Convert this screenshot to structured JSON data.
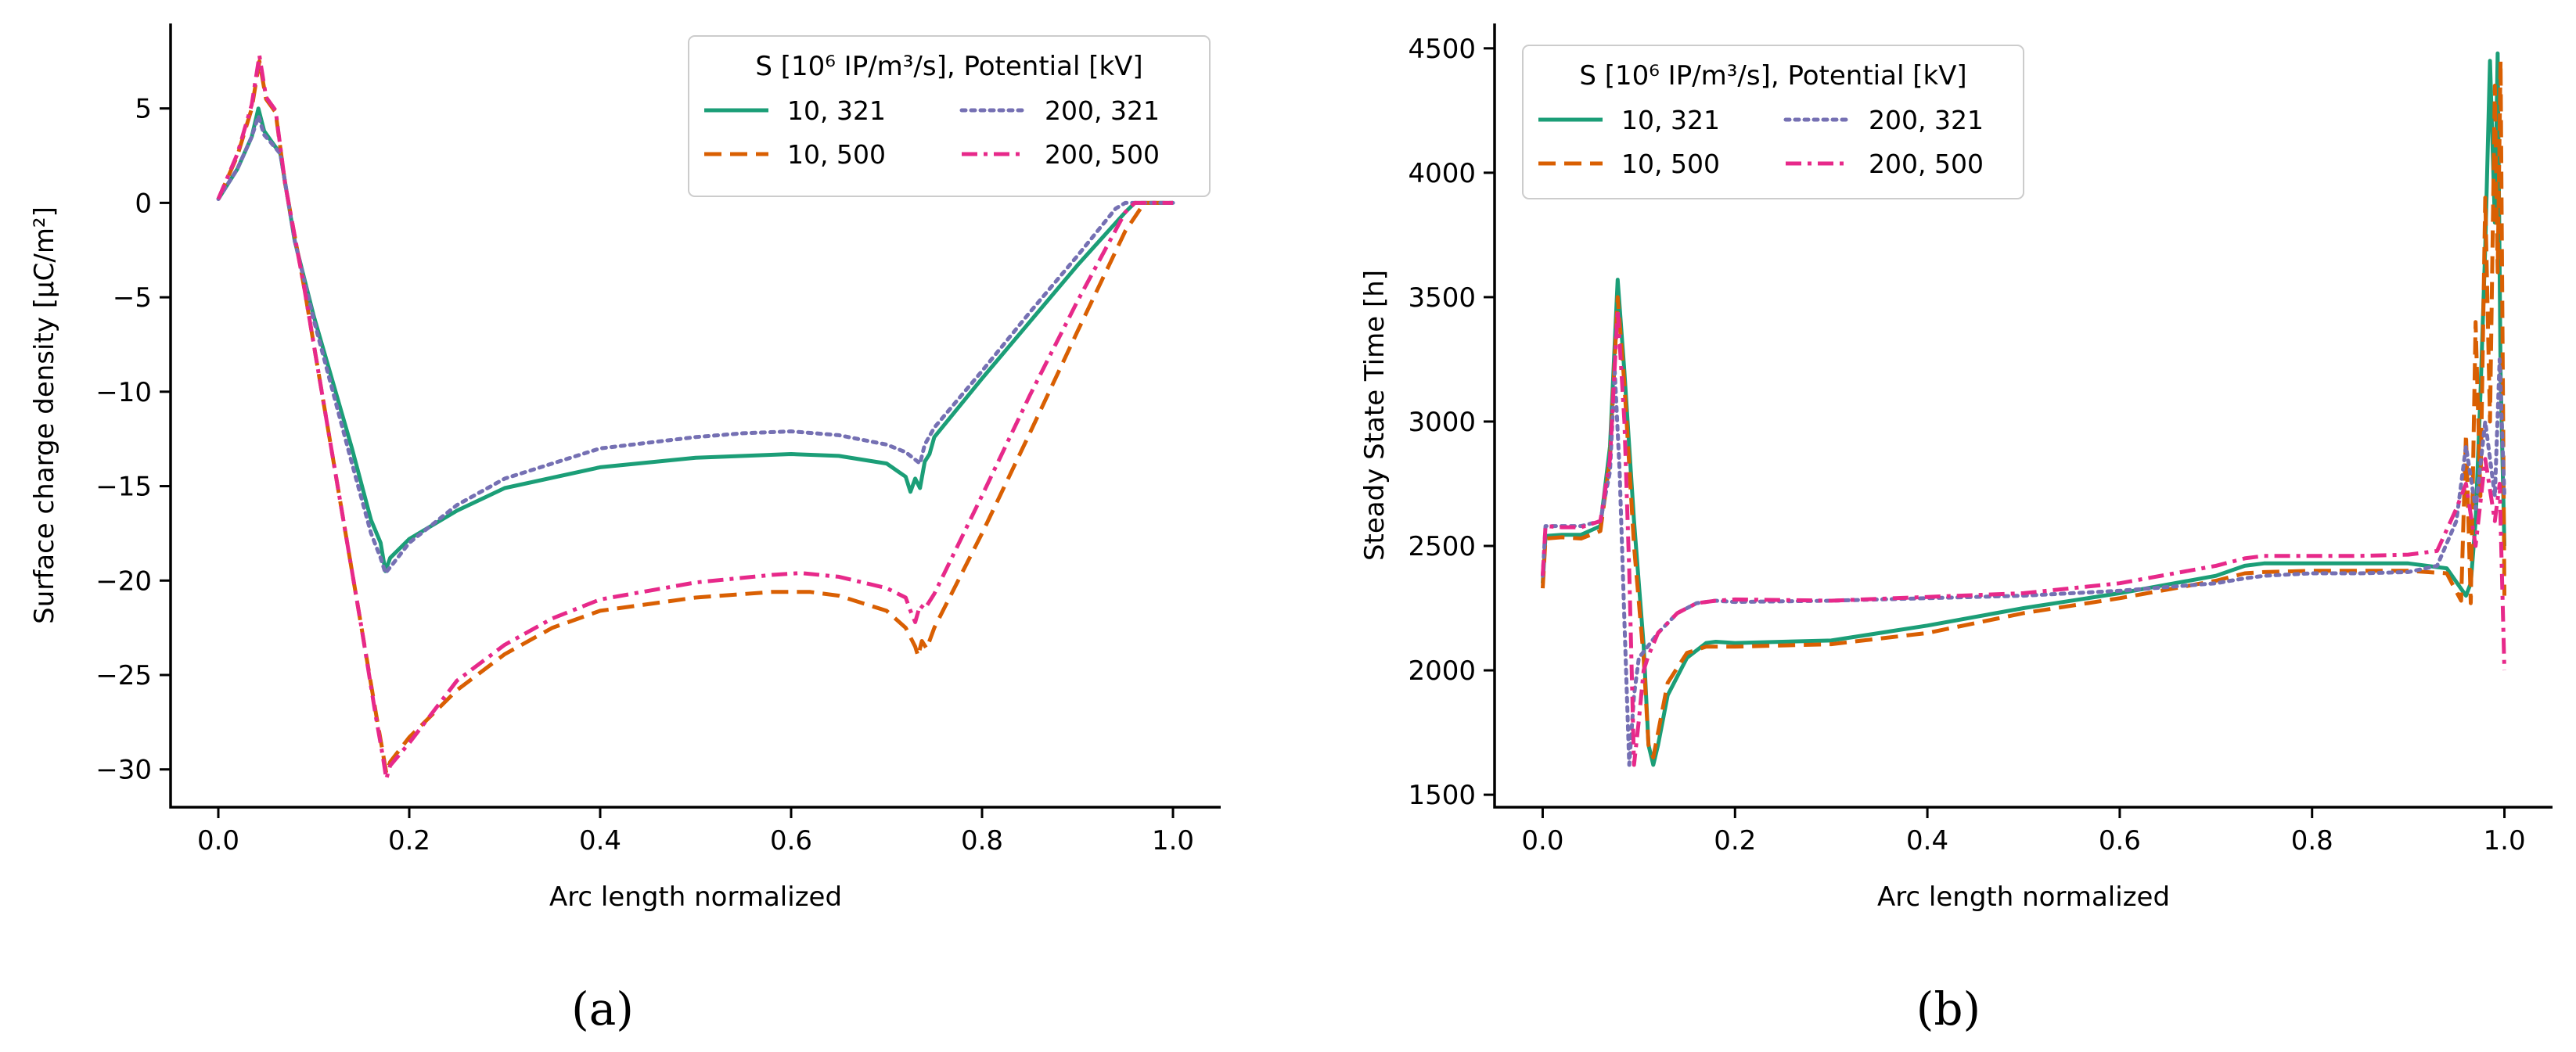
{
  "chart_data": [
    {
      "panel_label": "(a)",
      "type": "line",
      "title": "",
      "xlabel": "Arc length normalized",
      "ylabel": "Surface charge density [μC/m²]",
      "xlim": [
        -0.05,
        1.05
      ],
      "ylim": [
        -32,
        9.5
      ],
      "xticks": [
        0.0,
        0.2,
        0.4,
        0.6,
        0.8,
        1.0
      ],
      "xtick_labels": [
        "0.0",
        "0.2",
        "0.4",
        "0.6",
        "0.8",
        "1.0"
      ],
      "yticks": [
        5,
        0,
        -5,
        -10,
        -15,
        -20,
        -25,
        -30
      ],
      "ytick_labels": [
        "5",
        "0",
        "−5",
        "−10",
        "−15",
        "−20",
        "−25",
        "−30"
      ],
      "grid": false,
      "legend": {
        "title": "S [10⁶ IP/m³/s], Potential [kV]",
        "placement": "top-right",
        "columns": 2
      },
      "series": [
        {
          "name": "10, 321",
          "color": "#1b9e77",
          "dash": "solid",
          "x": [
            0.0,
            0.02,
            0.035,
            0.042,
            0.048,
            0.055,
            0.065,
            0.08,
            0.1,
            0.12,
            0.14,
            0.16,
            0.17,
            0.175,
            0.18,
            0.2,
            0.25,
            0.3,
            0.4,
            0.5,
            0.6,
            0.65,
            0.7,
            0.72,
            0.725,
            0.73,
            0.735,
            0.74,
            0.745,
            0.75,
            0.8,
            0.85,
            0.9,
            0.95,
            0.96,
            1.0
          ],
          "y": [
            0.2,
            1.8,
            3.5,
            5.0,
            3.8,
            3.3,
            2.6,
            -2.0,
            -6.0,
            -9.5,
            -13.0,
            -16.8,
            -18.0,
            -19.5,
            -18.8,
            -17.8,
            -16.3,
            -15.1,
            -14.0,
            -13.5,
            -13.3,
            -13.4,
            -13.8,
            -14.5,
            -15.3,
            -14.6,
            -15.1,
            -13.7,
            -13.3,
            -12.4,
            -9.3,
            -6.3,
            -3.3,
            -0.5,
            0.0,
            0.0
          ]
        },
        {
          "name": "10, 500",
          "color": "#d95f02",
          "dash": "dashed",
          "x": [
            0.0,
            0.02,
            0.035,
            0.043,
            0.05,
            0.06,
            0.07,
            0.09,
            0.11,
            0.13,
            0.15,
            0.165,
            0.172,
            0.176,
            0.18,
            0.2,
            0.25,
            0.3,
            0.35,
            0.4,
            0.5,
            0.58,
            0.62,
            0.65,
            0.7,
            0.72,
            0.73,
            0.733,
            0.737,
            0.742,
            0.75,
            0.8,
            0.85,
            0.9,
            0.95,
            0.97,
            1.0
          ],
          "y": [
            0.2,
            2.5,
            5.0,
            7.5,
            5.5,
            4.8,
            1.0,
            -4.5,
            -10.5,
            -16.5,
            -22.5,
            -27.0,
            -29.0,
            -30.2,
            -29.6,
            -28.3,
            -25.8,
            -23.9,
            -22.5,
            -21.6,
            -20.9,
            -20.6,
            -20.6,
            -20.8,
            -21.6,
            -22.5,
            -23.5,
            -24.0,
            -23.2,
            -23.6,
            -22.5,
            -17.5,
            -12.2,
            -6.8,
            -1.5,
            0.0,
            0.0
          ]
        },
        {
          "name": "200, 321",
          "color": "#7570b3",
          "dash": "dotted",
          "x": [
            0.0,
            0.02,
            0.035,
            0.042,
            0.048,
            0.055,
            0.065,
            0.08,
            0.1,
            0.12,
            0.14,
            0.16,
            0.17,
            0.175,
            0.18,
            0.2,
            0.25,
            0.3,
            0.4,
            0.5,
            0.55,
            0.6,
            0.65,
            0.7,
            0.72,
            0.73,
            0.735,
            0.74,
            0.75,
            0.8,
            0.85,
            0.9,
            0.94,
            0.95,
            1.0
          ],
          "y": [
            0.2,
            1.8,
            3.5,
            4.6,
            3.6,
            3.2,
            2.6,
            -2.0,
            -6.2,
            -10.0,
            -13.8,
            -17.5,
            -18.8,
            -19.6,
            -19.3,
            -18.0,
            -16.0,
            -14.6,
            -13.0,
            -12.4,
            -12.2,
            -12.1,
            -12.3,
            -12.8,
            -13.2,
            -13.6,
            -13.8,
            -12.8,
            -11.9,
            -8.9,
            -5.8,
            -2.8,
            -0.3,
            0.0,
            0.0
          ]
        },
        {
          "name": "200, 500",
          "color": "#e7298a",
          "dash": "dashdot",
          "x": [
            0.0,
            0.02,
            0.035,
            0.043,
            0.05,
            0.06,
            0.07,
            0.09,
            0.11,
            0.13,
            0.15,
            0.165,
            0.172,
            0.176,
            0.18,
            0.2,
            0.25,
            0.3,
            0.35,
            0.4,
            0.5,
            0.58,
            0.61,
            0.65,
            0.7,
            0.72,
            0.725,
            0.73,
            0.735,
            0.74,
            0.75,
            0.8,
            0.85,
            0.9,
            0.95,
            0.96,
            1.0
          ],
          "y": [
            0.2,
            2.6,
            5.2,
            7.8,
            5.6,
            4.9,
            1.0,
            -4.5,
            -10.5,
            -16.5,
            -22.5,
            -27.2,
            -29.2,
            -30.5,
            -29.8,
            -28.6,
            -25.3,
            -23.4,
            -22.0,
            -21.0,
            -20.1,
            -19.7,
            -19.6,
            -19.8,
            -20.4,
            -20.9,
            -21.6,
            -22.2,
            -21.3,
            -21.5,
            -20.7,
            -15.5,
            -10.2,
            -5.2,
            -0.5,
            0.0,
            0.0
          ]
        }
      ]
    },
    {
      "panel_label": "(b)",
      "type": "line",
      "title": "",
      "xlabel": "Arc length normalized",
      "ylabel": "Steady State Time [h]",
      "xlim": [
        -0.05,
        1.05
      ],
      "ylim": [
        1450,
        4600
      ],
      "xticks": [
        0.0,
        0.2,
        0.4,
        0.6,
        0.8,
        1.0
      ],
      "xtick_labels": [
        "0.0",
        "0.2",
        "0.4",
        "0.6",
        "0.8",
        "1.0"
      ],
      "yticks": [
        4500,
        4000,
        3500,
        3000,
        2500,
        2000,
        1500
      ],
      "ytick_labels": [
        "4500",
        "4000",
        "3500",
        "3000",
        "2500",
        "2000",
        "1500"
      ],
      "grid": false,
      "legend": {
        "title": "S [10⁶ IP/m³/s], Potential [kV]",
        "placement": "top-left",
        "columns": 2
      },
      "series": [
        {
          "name": "10, 321",
          "color": "#1b9e77",
          "dash": "solid",
          "x": [
            0.0,
            0.003,
            0.02,
            0.04,
            0.06,
            0.07,
            0.078,
            0.085,
            0.095,
            0.105,
            0.11,
            0.115,
            0.12,
            0.13,
            0.15,
            0.17,
            0.18,
            0.2,
            0.3,
            0.4,
            0.5,
            0.6,
            0.7,
            0.73,
            0.75,
            0.8,
            0.85,
            0.9,
            0.94,
            0.96,
            0.965,
            0.97,
            0.975,
            0.98,
            0.985,
            0.99,
            0.993,
            0.996,
            1.0
          ],
          "y": [
            2350,
            2540,
            2545,
            2545,
            2580,
            2900,
            3570,
            3200,
            2600,
            2100,
            1700,
            1620,
            1700,
            1900,
            2050,
            2110,
            2115,
            2110,
            2120,
            2180,
            2250,
            2310,
            2380,
            2420,
            2430,
            2430,
            2430,
            2430,
            2410,
            2300,
            2350,
            2600,
            3100,
            3700,
            4450,
            3800,
            4480,
            3200,
            2500
          ]
        },
        {
          "name": "10, 500",
          "color": "#d95f02",
          "dash": "dashed",
          "x": [
            0.0,
            0.003,
            0.02,
            0.04,
            0.06,
            0.07,
            0.078,
            0.085,
            0.095,
            0.105,
            0.11,
            0.115,
            0.12,
            0.13,
            0.15,
            0.17,
            0.18,
            0.2,
            0.3,
            0.4,
            0.5,
            0.6,
            0.7,
            0.73,
            0.75,
            0.8,
            0.85,
            0.9,
            0.94,
            0.955,
            0.96,
            0.965,
            0.97,
            0.975,
            0.98,
            0.985,
            0.99,
            0.993,
            0.996,
            1.0
          ],
          "y": [
            2330,
            2530,
            2535,
            2530,
            2560,
            2850,
            3500,
            3150,
            2500,
            2050,
            1700,
            1650,
            1750,
            1950,
            2070,
            2095,
            2095,
            2095,
            2105,
            2150,
            2230,
            2290,
            2360,
            2390,
            2395,
            2400,
            2400,
            2400,
            2390,
            2280,
            2950,
            2270,
            3400,
            2700,
            3900,
            3000,
            4350,
            3600,
            4450,
            2300
          ]
        },
        {
          "name": "200, 321",
          "color": "#7570b3",
          "dash": "dotted",
          "x": [
            0.0,
            0.003,
            0.02,
            0.04,
            0.06,
            0.07,
            0.075,
            0.08,
            0.085,
            0.09,
            0.095,
            0.1,
            0.11,
            0.12,
            0.14,
            0.16,
            0.18,
            0.2,
            0.3,
            0.4,
            0.5,
            0.6,
            0.7,
            0.73,
            0.75,
            0.8,
            0.85,
            0.9,
            0.93,
            0.95,
            0.96,
            0.97,
            0.98,
            0.99,
            0.995,
            1.0
          ],
          "y": [
            2380,
            2580,
            2580,
            2580,
            2600,
            2800,
            3200,
            2800,
            2200,
            1620,
            1900,
            2050,
            2100,
            2150,
            2230,
            2270,
            2280,
            2275,
            2280,
            2290,
            2300,
            2320,
            2350,
            2370,
            2380,
            2390,
            2390,
            2395,
            2420,
            2600,
            2900,
            2650,
            3000,
            2700,
            3250,
            2700
          ]
        },
        {
          "name": "200, 500",
          "color": "#e7298a",
          "dash": "dashdot",
          "x": [
            0.0,
            0.003,
            0.02,
            0.04,
            0.06,
            0.07,
            0.078,
            0.085,
            0.09,
            0.095,
            0.1,
            0.105,
            0.11,
            0.12,
            0.14,
            0.16,
            0.18,
            0.2,
            0.3,
            0.4,
            0.5,
            0.6,
            0.7,
            0.73,
            0.75,
            0.8,
            0.85,
            0.9,
            0.93,
            0.95,
            0.96,
            0.97,
            0.98,
            0.99,
            0.995,
            1.0
          ],
          "y": [
            2380,
            2580,
            2575,
            2575,
            2600,
            2850,
            3450,
            3000,
            2400,
            1620,
            1800,
            2000,
            2060,
            2150,
            2230,
            2270,
            2280,
            2285,
            2280,
            2295,
            2310,
            2350,
            2420,
            2450,
            2460,
            2460,
            2460,
            2465,
            2480,
            2650,
            2750,
            2500,
            2850,
            2600,
            2750,
            2000
          ]
        }
      ]
    }
  ]
}
